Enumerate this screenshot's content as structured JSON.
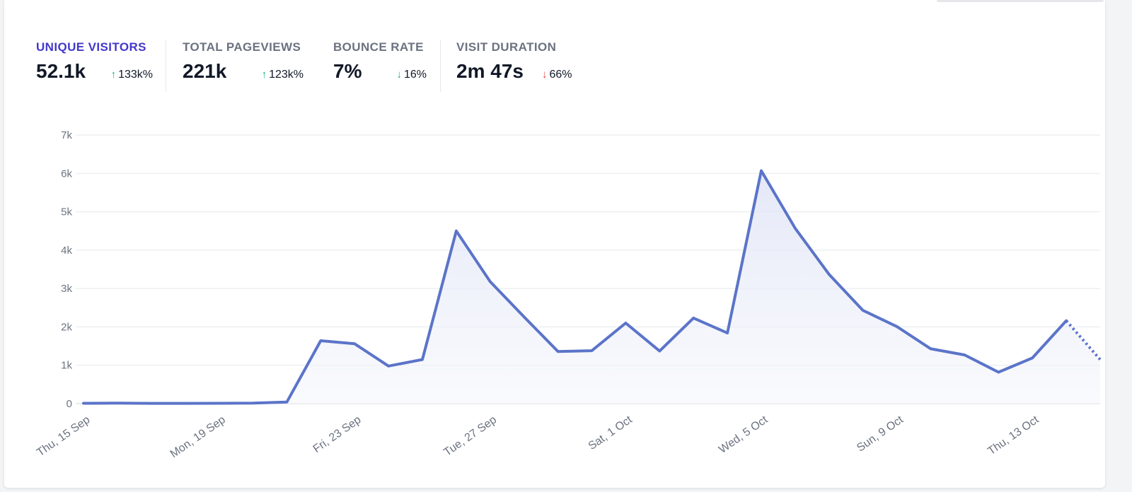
{
  "stats": [
    {
      "label": "UNIQUE VISITORS",
      "value": "52.1k",
      "change": "133k%",
      "arrow": "↑",
      "active": true
    },
    {
      "label": "TOTAL PAGEVIEWS",
      "value": "221k",
      "change": "123k%",
      "arrow": "↑",
      "active": false
    },
    {
      "label": "BOUNCE RATE",
      "value": "7%",
      "change": "16%",
      "arrow": "↓",
      "active": false
    },
    {
      "label": "VISIT DURATION",
      "value": "2m 47s",
      "change": "66%",
      "arrow": "↓",
      "active": false
    }
  ],
  "colors": {
    "line": "#5b74c9",
    "area_top": "#dfe4f6",
    "active_label": "#4338ca",
    "arrow_good": "#10b981",
    "arrow_bad": "#ef4444",
    "grid": "#e5e7eb"
  },
  "chart_data": {
    "type": "line",
    "title": "",
    "xlabel": "",
    "ylabel": "",
    "ylim": [
      0,
      7000
    ],
    "y_ticks": [
      0,
      1000,
      2000,
      3000,
      4000,
      5000,
      6000,
      7000
    ],
    "y_tick_labels": [
      "0",
      "1k",
      "2k",
      "3k",
      "4k",
      "5k",
      "6k",
      "7k"
    ],
    "x": [
      "2022-09-15",
      "2022-09-16",
      "2022-09-17",
      "2022-09-18",
      "2022-09-19",
      "2022-09-20",
      "2022-09-21",
      "2022-09-22",
      "2022-09-23",
      "2022-09-24",
      "2022-09-25",
      "2022-09-26",
      "2022-09-27",
      "2022-09-28",
      "2022-09-29",
      "2022-09-30",
      "2022-10-01",
      "2022-10-02",
      "2022-10-03",
      "2022-10-04",
      "2022-10-05",
      "2022-10-06",
      "2022-10-07",
      "2022-10-08",
      "2022-10-09",
      "2022-10-10",
      "2022-10-11",
      "2022-10-12",
      "2022-10-13",
      "2022-10-14",
      "2022-10-15"
    ],
    "x_tick_labels": [
      "Thu, 15 Sep",
      "Mon, 19 Sep",
      "Fri, 23 Sep",
      "Tue, 27 Sep",
      "Sat, 1 Oct",
      "Wed, 5 Oct",
      "Sun, 9 Oct",
      "Thu, 13 Oct"
    ],
    "x_tick_index": [
      0,
      4,
      8,
      12,
      16,
      20,
      24,
      28
    ],
    "series": [
      {
        "values": [
          10,
          12,
          8,
          8,
          10,
          15,
          40,
          1640,
          1560,
          980,
          1150,
          4500,
          3180,
          2260,
          1360,
          1380,
          2100,
          1370,
          2230,
          1840,
          6070,
          4570,
          3370,
          2430,
          2010,
          1430,
          1270,
          820,
          1190,
          2160,
          1150
        ],
        "dotted_from_index": 29
      }
    ],
    "grid": true,
    "legend": "none"
  }
}
